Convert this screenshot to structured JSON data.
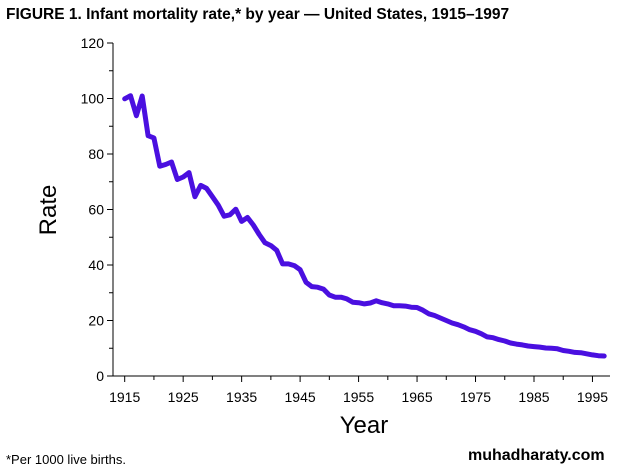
{
  "chart_data": {
    "type": "line",
    "title": "FIGURE 1. Infant mortality rate,* by year — United States, 1915–1997",
    "xlabel": "Year",
    "ylabel": "Rate",
    "xlim": [
      1913,
      1998
    ],
    "ylim": [
      0,
      120
    ],
    "x_ticks": [
      1915,
      1925,
      1935,
      1945,
      1955,
      1965,
      1975,
      1985,
      1995
    ],
    "y_ticks": [
      0,
      20,
      40,
      60,
      80,
      100,
      120
    ],
    "grid": false,
    "line_color": "#4a0fe0",
    "series": [
      {
        "name": "Infant mortality rate",
        "x": [
          1915,
          1916,
          1917,
          1918,
          1919,
          1920,
          1921,
          1922,
          1923,
          1924,
          1925,
          1926,
          1927,
          1928,
          1929,
          1930,
          1931,
          1932,
          1933,
          1934,
          1935,
          1936,
          1937,
          1938,
          1939,
          1940,
          1941,
          1942,
          1943,
          1944,
          1945,
          1946,
          1947,
          1948,
          1949,
          1950,
          1951,
          1952,
          1953,
          1954,
          1955,
          1956,
          1957,
          1958,
          1959,
          1960,
          1961,
          1962,
          1963,
          1964,
          1965,
          1966,
          1967,
          1968,
          1969,
          1970,
          1971,
          1972,
          1973,
          1974,
          1975,
          1976,
          1977,
          1978,
          1979,
          1980,
          1981,
          1982,
          1983,
          1984,
          1985,
          1986,
          1987,
          1988,
          1989,
          1990,
          1991,
          1992,
          1993,
          1994,
          1995,
          1996,
          1997
        ],
        "values": [
          99.9,
          101.0,
          93.8,
          100.9,
          86.6,
          85.8,
          75.6,
          76.2,
          77.1,
          70.8,
          71.7,
          73.3,
          64.6,
          68.7,
          67.6,
          64.6,
          61.6,
          57.6,
          58.1,
          60.1,
          55.7,
          57.1,
          54.4,
          51.0,
          48.0,
          47.0,
          45.3,
          40.4,
          40.4,
          39.8,
          38.3,
          33.8,
          32.2,
          32.0,
          31.3,
          29.2,
          28.4,
          28.4,
          27.8,
          26.6,
          26.4,
          26.0,
          26.3,
          27.1,
          26.4,
          26.0,
          25.3,
          25.3,
          25.2,
          24.8,
          24.7,
          23.7,
          22.4,
          21.8,
          20.9,
          20.0,
          19.1,
          18.5,
          17.7,
          16.7,
          16.1,
          15.2,
          14.1,
          13.8,
          13.1,
          12.6,
          11.9,
          11.5,
          11.2,
          10.8,
          10.6,
          10.4,
          10.1,
          10.0,
          9.8,
          9.2,
          8.9,
          8.5,
          8.4,
          8.0,
          7.6,
          7.3,
          7.2
        ]
      }
    ]
  },
  "footnote": "*Per 1000 live births.",
  "watermark": "muhadharaty.com"
}
